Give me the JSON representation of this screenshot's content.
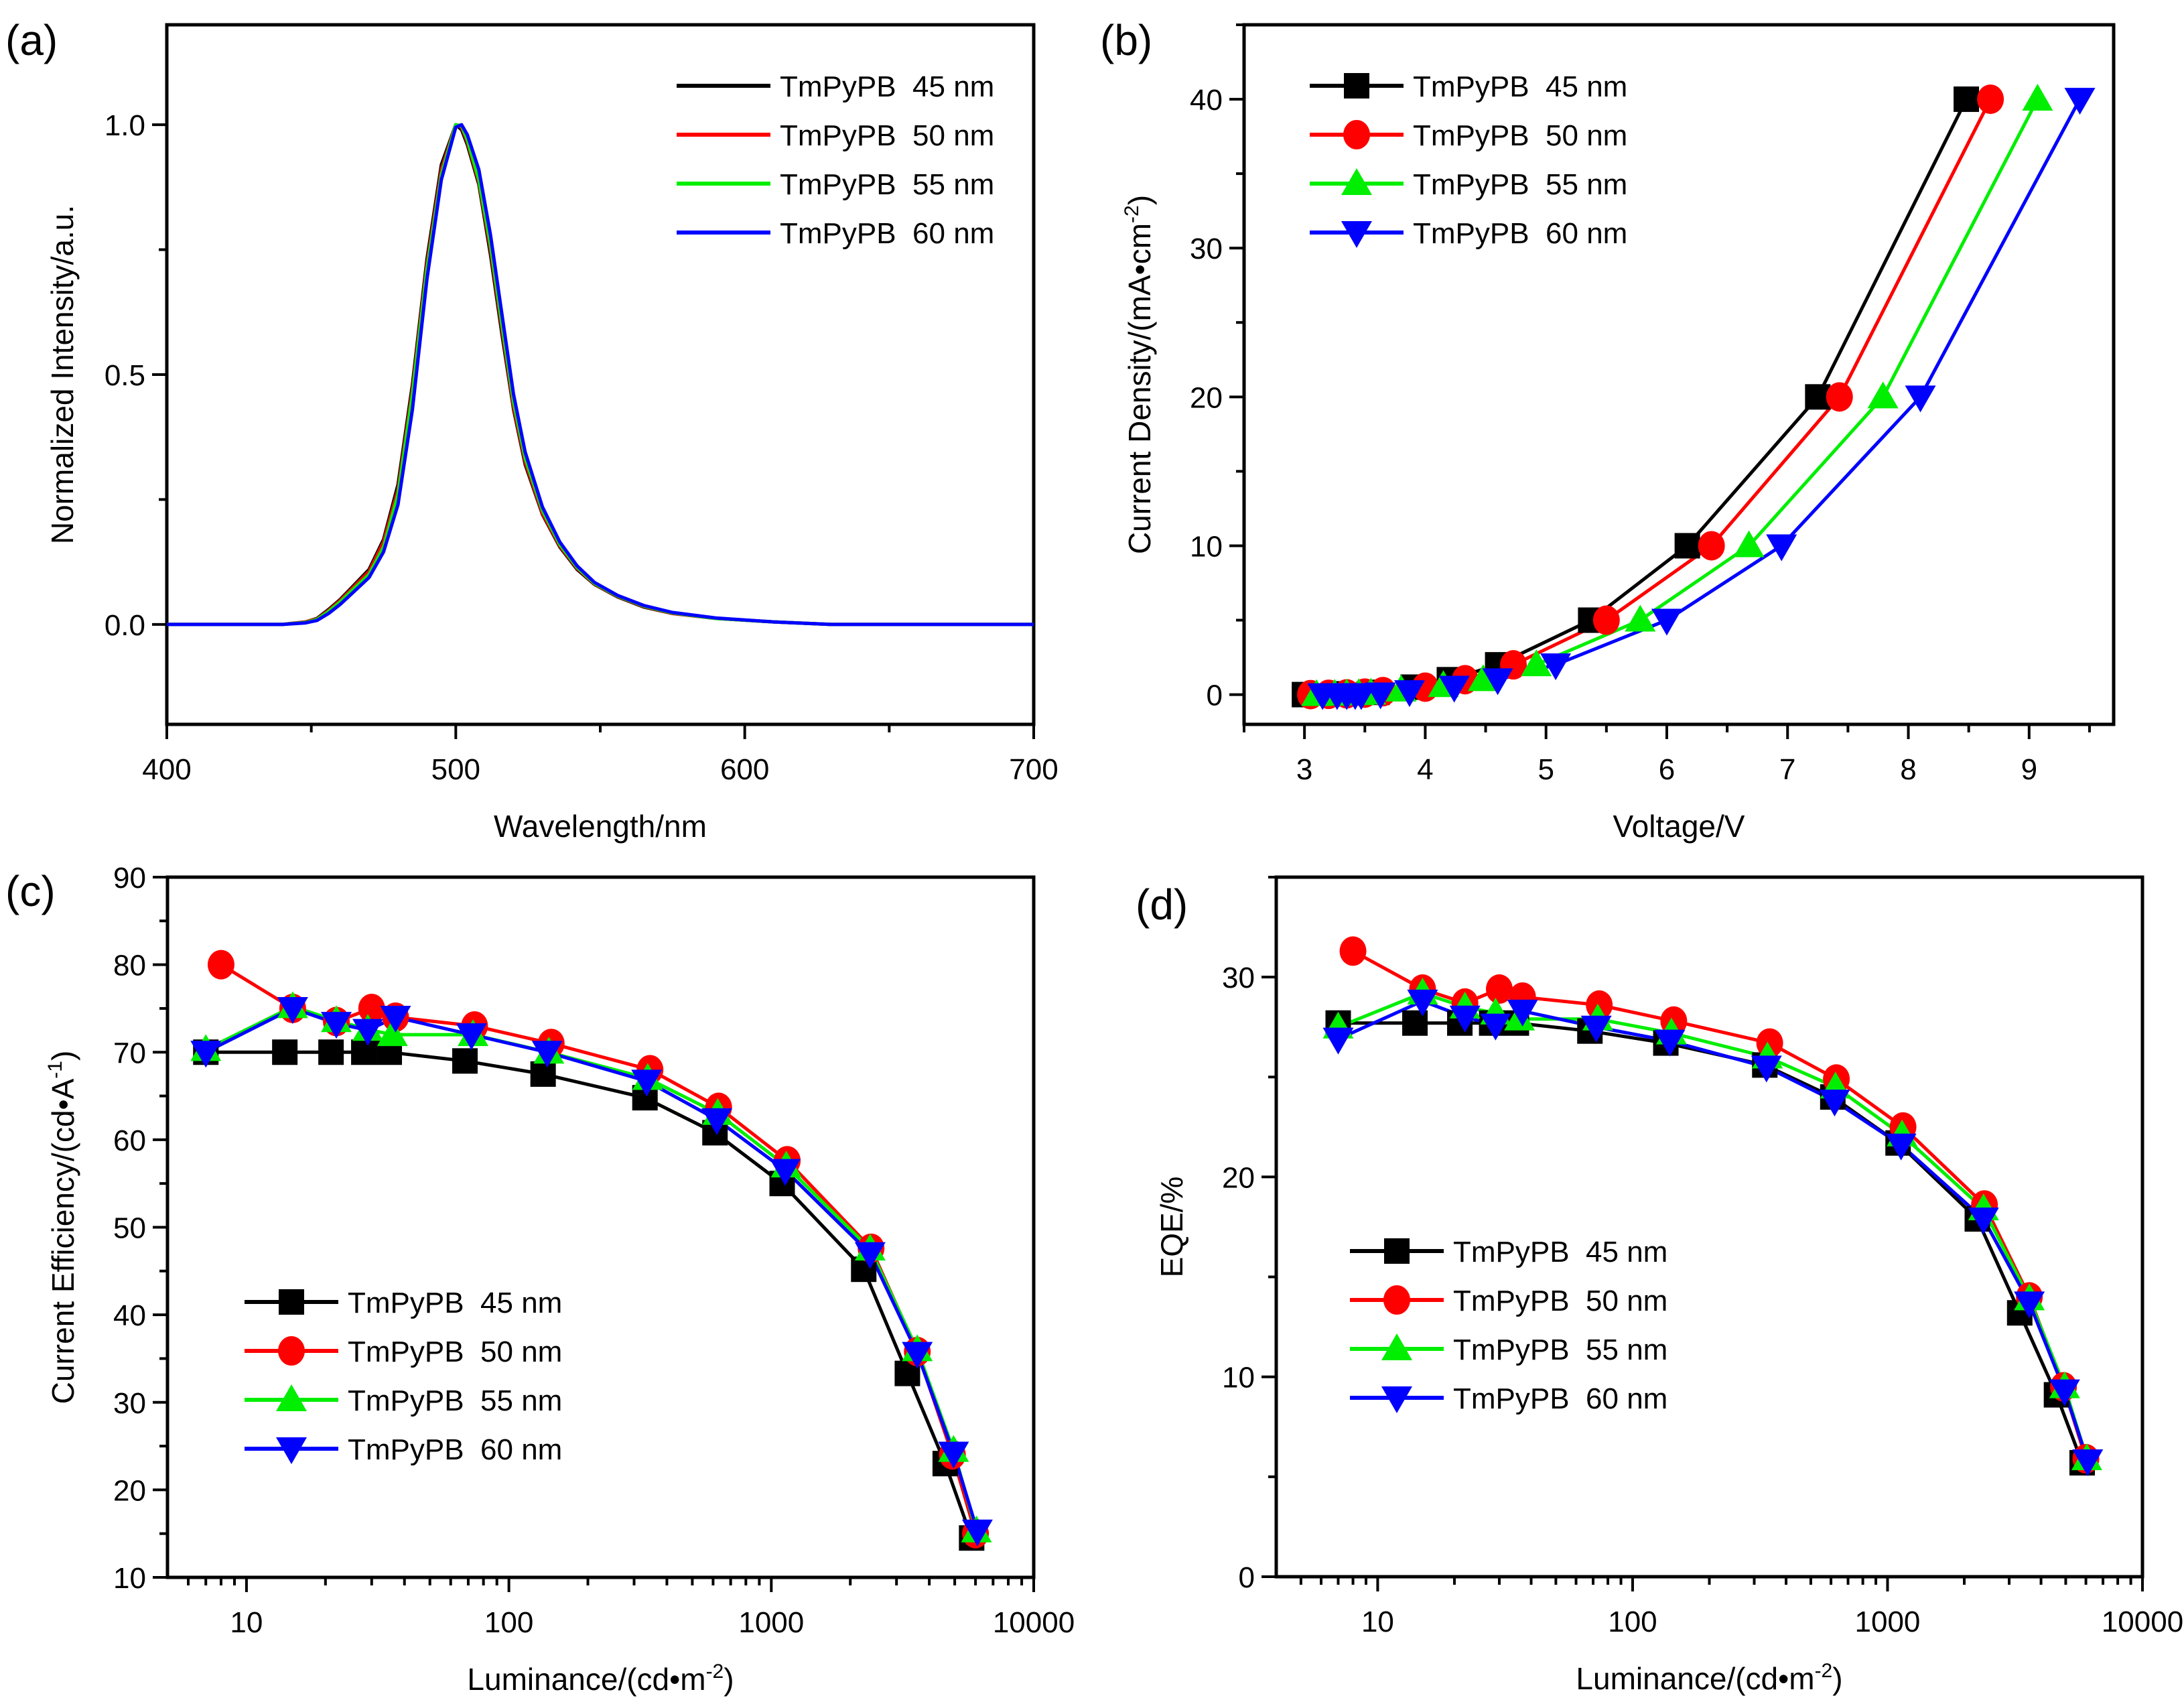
{
  "figure": {
    "colors": {
      "black": "#000000",
      "red": "#ff0000",
      "green": "#00ee00",
      "blue": "#0000ff"
    }
  },
  "chart_data": [
    {
      "id": "a",
      "panel_label": "(a)",
      "type": "line",
      "title": "",
      "xlabel": "Wavelength/nm",
      "ylabel": "Normalized Intensity/a.u.",
      "xlim": [
        400,
        700
      ],
      "ylim": [
        -0.2,
        1.2
      ],
      "xscale": "linear",
      "xticks": [
        400,
        500,
        600,
        700
      ],
      "xtick_labels": [
        "400",
        "500",
        "600",
        "700"
      ],
      "yticks": [
        0.0,
        0.5,
        1.0
      ],
      "ytick_labels": [
        "0.0",
        "0.5",
        "1.0"
      ],
      "x_minor_step": 50,
      "y_minor_step": 0.25,
      "grid": false,
      "legend_position": "top-right",
      "markers": false,
      "series": [
        {
          "name": "TmPyPB  45 nm",
          "color": "#000000",
          "x": [
            400,
            440,
            448,
            452,
            456,
            460,
            465,
            470,
            475,
            480,
            485,
            490,
            495,
            500,
            502,
            504,
            508,
            512,
            516,
            520,
            524,
            530,
            536,
            542,
            548,
            556,
            565,
            575,
            590,
            610,
            630,
            660,
            700
          ],
          "y": [
            0,
            0,
            0.005,
            0.012,
            0.03,
            0.05,
            0.08,
            0.11,
            0.17,
            0.28,
            0.48,
            0.73,
            0.92,
            1.0,
            0.99,
            0.96,
            0.88,
            0.74,
            0.58,
            0.43,
            0.32,
            0.22,
            0.155,
            0.11,
            0.08,
            0.055,
            0.035,
            0.022,
            0.012,
            0.005,
            0.0,
            0.0,
            0.0
          ]
        },
        {
          "name": "TmPyPB  50 nm",
          "color": "#ff0000",
          "x": [
            400,
            440,
            448,
            452,
            456,
            460,
            465,
            470,
            475,
            480,
            485,
            490,
            495,
            500,
            502,
            504,
            508,
            512,
            516,
            520,
            524,
            530,
            536,
            542,
            548,
            556,
            565,
            575,
            590,
            610,
            630,
            660,
            700
          ],
          "y": [
            0,
            0,
            0.005,
            0.011,
            0.028,
            0.048,
            0.077,
            0.106,
            0.165,
            0.27,
            0.47,
            0.72,
            0.91,
            1.0,
            0.995,
            0.965,
            0.885,
            0.75,
            0.59,
            0.435,
            0.325,
            0.222,
            0.157,
            0.112,
            0.081,
            0.056,
            0.036,
            0.022,
            0.012,
            0.005,
            0.0,
            0.0,
            0.0
          ]
        },
        {
          "name": "TmPyPB  55 nm",
          "color": "#00ee00",
          "x": [
            400,
            440,
            448,
            452,
            456,
            460,
            465,
            470,
            475,
            480,
            485,
            490,
            495,
            500,
            502,
            504,
            508,
            512,
            516,
            520,
            524,
            530,
            536,
            542,
            548,
            556,
            565,
            575,
            590,
            610,
            630,
            660,
            700
          ],
          "y": [
            0,
            0,
            0.004,
            0.01,
            0.026,
            0.045,
            0.073,
            0.1,
            0.155,
            0.26,
            0.46,
            0.71,
            0.9,
            1.0,
            0.998,
            0.97,
            0.89,
            0.76,
            0.6,
            0.445,
            0.333,
            0.228,
            0.16,
            0.114,
            0.082,
            0.057,
            0.037,
            0.023,
            0.012,
            0.005,
            0.0,
            0.0,
            0.0
          ]
        },
        {
          "name": "TmPyPB  60 nm",
          "color": "#0000ff",
          "x": [
            400,
            440,
            448,
            452,
            456,
            460,
            465,
            470,
            475,
            480,
            485,
            490,
            495,
            500,
            502,
            504,
            508,
            512,
            516,
            520,
            524,
            530,
            536,
            542,
            548,
            556,
            565,
            575,
            590,
            610,
            630,
            660,
            700
          ],
          "y": [
            0,
            0,
            0.003,
            0.008,
            0.022,
            0.04,
            0.067,
            0.094,
            0.145,
            0.24,
            0.43,
            0.69,
            0.89,
            0.995,
            1.0,
            0.98,
            0.91,
            0.78,
            0.62,
            0.46,
            0.345,
            0.235,
            0.165,
            0.117,
            0.084,
            0.058,
            0.038,
            0.024,
            0.013,
            0.005,
            0.0,
            0.0,
            0.0
          ]
        }
      ]
    },
    {
      "id": "b",
      "panel_label": "(b)",
      "type": "line",
      "title": "",
      "xlabel": "Voltage/V",
      "ylabel": "Current Density/(mA•cm",
      "ylabel_sup": "-2",
      "ylabel_end": ")",
      "xlim": [
        2.5,
        9.7
      ],
      "ylim": [
        -2,
        45
      ],
      "xscale": "linear",
      "xticks": [
        3,
        4,
        5,
        6,
        7,
        8,
        9
      ],
      "xtick_labels": [
        "3",
        "4",
        "5",
        "6",
        "7",
        "8",
        "9"
      ],
      "yticks": [
        0,
        10,
        20,
        30,
        40
      ],
      "ytick_labels": [
        "0",
        "10",
        "20",
        "30",
        "40"
      ],
      "x_minor_step": 0.5,
      "y_minor_step": 5,
      "grid": false,
      "legend_position": "top-left",
      "markers": true,
      "series": [
        {
          "name": "TmPyPB  45 nm",
          "color": "#000000",
          "marker": "square",
          "x": [
            3.0,
            3.3,
            3.6,
            3.9,
            4.2,
            4.6,
            5.37,
            6.17,
            7.25,
            8.48
          ],
          "y": [
            0,
            0.05,
            0.15,
            0.5,
            1,
            2,
            5,
            10,
            20,
            40
          ]
        },
        {
          "name": "TmPyPB  50 nm",
          "color": "#ff0000",
          "marker": "circle",
          "x": [
            3.05,
            3.2,
            3.35,
            3.5,
            3.65,
            4.0,
            4.33,
            4.73,
            5.5,
            6.37,
            7.43,
            8.68
          ],
          "y": [
            0,
            0.02,
            0.05,
            0.1,
            0.2,
            0.5,
            1,
            2,
            5,
            10,
            20,
            40
          ]
        },
        {
          "name": "TmPyPB  55 nm",
          "color": "#00ee00",
          "marker": "triangle-up",
          "x": [
            3.1,
            3.25,
            3.35,
            3.45,
            3.55,
            3.8,
            4.15,
            4.48,
            4.92,
            5.78,
            6.68,
            7.79,
            9.07
          ],
          "y": [
            0,
            0.02,
            0.04,
            0.06,
            0.1,
            0.3,
            0.6,
            1,
            2,
            5,
            10,
            20,
            40
          ]
        },
        {
          "name": "TmPyPB  60 nm",
          "color": "#0000ff",
          "marker": "triangle-down",
          "x": [
            3.15,
            3.27,
            3.35,
            3.42,
            3.47,
            3.63,
            3.87,
            4.24,
            4.6,
            5.08,
            6.0,
            6.95,
            8.1,
            9.42
          ],
          "y": [
            0,
            0,
            0,
            0,
            0,
            0.05,
            0.2,
            0.5,
            1,
            2,
            5,
            10,
            20,
            40
          ]
        }
      ]
    },
    {
      "id": "c",
      "panel_label": "(c)",
      "type": "line",
      "title": "",
      "xlabel": "Luminance/(cd•m",
      "xlabel_sup": "-2",
      "xlabel_end": ")",
      "ylabel": "Current Efficiency/(cd•A",
      "ylabel_sup": "-1",
      "ylabel_end": ")",
      "xlim": [
        5,
        10000
      ],
      "ylim": [
        10,
        90
      ],
      "xscale": "log",
      "xticks": [
        10,
        100,
        1000,
        10000
      ],
      "xtick_labels": [
        "10",
        "100",
        "1000",
        "10000"
      ],
      "yticks": [
        10,
        20,
        30,
        40,
        50,
        60,
        70,
        80,
        90
      ],
      "ytick_labels": [
        "10",
        "20",
        "30",
        "40",
        "50",
        "60",
        "70",
        "80",
        "90"
      ],
      "y_minor_step": 5,
      "grid": false,
      "legend_position": "bottom-left",
      "markers": true,
      "series": [
        {
          "name": "TmPyPB  45 nm",
          "color": "#000000",
          "marker": "square",
          "x": [
            7,
            14,
            21,
            28,
            35,
            68,
            135,
            330,
            610,
            1100,
            2250,
            3300,
            4600,
            5800
          ],
          "y": [
            70,
            70,
            70,
            70,
            70,
            69,
            67.5,
            64.8,
            60.8,
            55,
            45.2,
            33.3,
            23,
            14.5
          ]
        },
        {
          "name": "TmPyPB  50 nm",
          "color": "#ff0000",
          "marker": "circle",
          "x": [
            8,
            15,
            22,
            30,
            37,
            74,
            145,
            345,
            630,
            1150,
            2400,
            3600,
            4900,
            6000
          ],
          "y": [
            80,
            75,
            73.5,
            75,
            74,
            73,
            71,
            68,
            63.7,
            57.6,
            47.6,
            35.8,
            24,
            15
          ]
        },
        {
          "name": "TmPyPB  55 nm",
          "color": "#00ee00",
          "marker": "triangle-up",
          "x": [
            7,
            15,
            22,
            29,
            36,
            73,
            142,
            338,
            625,
            1140,
            2380,
            3600,
            4950,
            6050
          ],
          "y": [
            70.3,
            75.2,
            73.6,
            72.6,
            72,
            72,
            70,
            67,
            63,
            57,
            47.5,
            36,
            24.5,
            15.3
          ]
        },
        {
          "name": "TmPyPB  60 nm",
          "color": "#0000ff",
          "marker": "triangle-down",
          "x": [
            7,
            15,
            22,
            29,
            37,
            72,
            140,
            335,
            620,
            1130,
            2380,
            3600,
            4950,
            6100
          ],
          "y": [
            70,
            75,
            73.3,
            72.5,
            74,
            72,
            70,
            66.7,
            62.3,
            56.5,
            47,
            35.6,
            24.2,
            15.3
          ]
        }
      ]
    },
    {
      "id": "d",
      "panel_label": "(d)",
      "type": "line",
      "title": "",
      "xlabel": "Luminance/(cd•m",
      "xlabel_sup": "-2",
      "xlabel_end": ")",
      "ylabel": "EQE/%",
      "xlim": [
        4,
        10000
      ],
      "ylim": [
        0,
        35
      ],
      "xscale": "log",
      "xticks": [
        10,
        100,
        1000,
        10000
      ],
      "xtick_labels": [
        "10",
        "100",
        "1000",
        "10000"
      ],
      "yticks": [
        0,
        10,
        20,
        30
      ],
      "ytick_labels": [
        "0",
        "10",
        "20",
        "30"
      ],
      "y_minor_step": 5,
      "grid": false,
      "legend_position": "bottom-left",
      "markers": true,
      "series": [
        {
          "name": "TmPyPB  45 nm",
          "color": "#000000",
          "marker": "square",
          "x": [
            7,
            14,
            21,
            28,
            35,
            68,
            135,
            330,
            610,
            1100,
            2250,
            3300,
            4600,
            5800
          ],
          "y": [
            27.7,
            27.7,
            27.7,
            27.7,
            27.7,
            27.3,
            26.7,
            25.6,
            24,
            21.7,
            17.9,
            13.2,
            9.1,
            5.7
          ]
        },
        {
          "name": "TmPyPB  50 nm",
          "color": "#ff0000",
          "marker": "circle",
          "x": [
            8,
            15,
            22,
            30,
            37,
            74,
            145,
            345,
            630,
            1150,
            2400,
            3600,
            4900,
            6000
          ],
          "y": [
            31.3,
            29.4,
            28.7,
            29.4,
            29,
            28.6,
            27.8,
            26.7,
            24.9,
            22.5,
            18.6,
            14,
            9.5,
            5.9
          ]
        },
        {
          "name": "TmPyPB  55 nm",
          "color": "#00ee00",
          "marker": "triangle-up",
          "x": [
            7,
            15,
            22,
            29,
            36,
            73,
            142,
            338,
            625,
            1140,
            2380,
            3600,
            4950,
            6050
          ],
          "y": [
            27.5,
            29.2,
            28.5,
            28.2,
            27.9,
            27.9,
            27.2,
            26,
            24.5,
            22.1,
            18.4,
            13.9,
            9.5,
            5.9
          ]
        },
        {
          "name": "TmPyPB  60 nm",
          "color": "#0000ff",
          "marker": "triangle-down",
          "x": [
            7,
            15,
            22,
            29,
            37,
            72,
            140,
            335,
            620,
            1130,
            2380,
            3600,
            4950,
            6100
          ],
          "y": [
            26.9,
            28.8,
            28,
            27.6,
            28.3,
            27.5,
            26.8,
            25.5,
            23.8,
            21.6,
            17.9,
            13.7,
            9.3,
            5.8
          ]
        }
      ]
    }
  ]
}
